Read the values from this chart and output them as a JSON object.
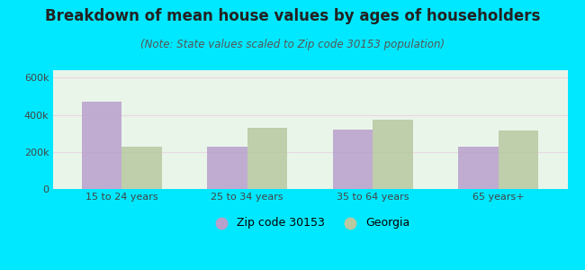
{
  "title": "Breakdown of mean house values by ages of householders",
  "subtitle": "(Note: State values scaled to Zip code 30153 population)",
  "categories": [
    "15 to 24 years",
    "25 to 34 years",
    "35 to 64 years",
    "65 years+"
  ],
  "zip_values": [
    470000,
    230000,
    320000,
    230000
  ],
  "georgia_values": [
    230000,
    330000,
    375000,
    315000
  ],
  "zip_color": "#b8a0cc",
  "georgia_color": "#b8c8a0",
  "background_outer": "#00e8ff",
  "background_inner_top": "#f5fdf5",
  "background_inner_bottom": "#e0f5e8",
  "ylim": [
    0,
    640000
  ],
  "yticks": [
    0,
    200000,
    400000,
    600000
  ],
  "ytick_labels": [
    "0",
    "200k",
    "400k",
    "600k"
  ],
  "bar_width": 0.32,
  "legend_zip_label": "Zip code 30153",
  "legend_georgia_label": "Georgia",
  "title_fontsize": 12,
  "subtitle_fontsize": 8.5,
  "grid_color": "#ddeecc"
}
